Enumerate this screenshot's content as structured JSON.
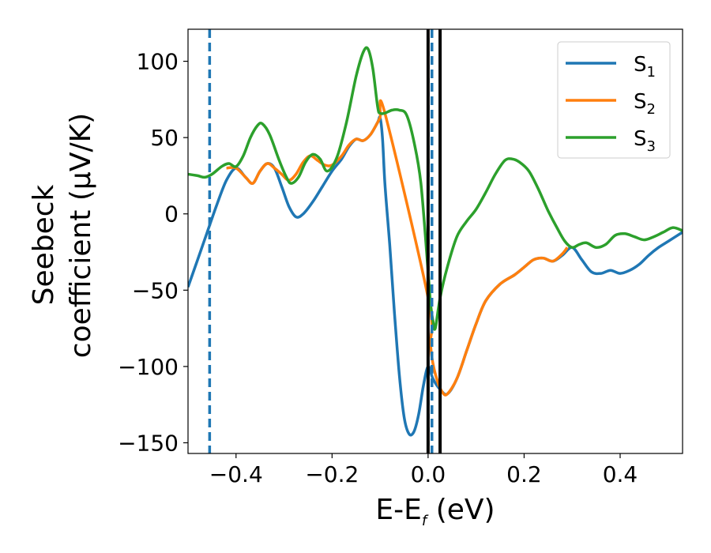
{
  "chart_data": {
    "type": "line",
    "xlabel": {
      "main": "E-E",
      "sub": "f",
      "unit": " (eV)"
    },
    "ylabel": {
      "line1": "Seebeck",
      "line2": "coefficient  (μV/K)"
    },
    "xlim": [
      -0.5,
      0.53
    ],
    "ylim": [
      -157,
      121
    ],
    "xticks": [
      -0.4,
      -0.2,
      0.0,
      0.2,
      0.4
    ],
    "xtick_labels": [
      "−0.4",
      "−0.2",
      "0.0",
      "0.2",
      "0.4"
    ],
    "yticks": [
      -150,
      -100,
      -50,
      0,
      50,
      100
    ],
    "ytick_labels": [
      "−150",
      "−100",
      "−50",
      "0",
      "50",
      "100"
    ],
    "grid": false,
    "legend_position": "top-right",
    "vlines": [
      {
        "x": -0.455,
        "style": "dashed",
        "color": "#1f77b4"
      },
      {
        "x": 0.0,
        "style": "solid",
        "color": "#000000"
      },
      {
        "x": 0.008,
        "style": "dashed",
        "color": "#1f77b4"
      },
      {
        "x": 0.025,
        "style": "solid",
        "color": "#000000"
      }
    ],
    "series": [
      {
        "name": "S",
        "sub": "1",
        "color": "#1f77b4",
        "points": [
          [
            -0.5,
            -48
          ],
          [
            -0.48,
            -30
          ],
          [
            -0.46,
            -12
          ],
          [
            -0.44,
            6
          ],
          [
            -0.42,
            22
          ],
          [
            -0.4,
            30
          ],
          [
            -0.38,
            24
          ],
          [
            -0.365,
            20
          ],
          [
            -0.35,
            28
          ],
          [
            -0.335,
            33
          ],
          [
            -0.32,
            30
          ],
          [
            -0.305,
            18
          ],
          [
            -0.29,
            5
          ],
          [
            -0.275,
            -2
          ],
          [
            -0.26,
            0
          ],
          [
            -0.24,
            8
          ],
          [
            -0.22,
            18
          ],
          [
            -0.2,
            28
          ],
          [
            -0.18,
            36
          ],
          [
            -0.165,
            44
          ],
          [
            -0.15,
            49
          ],
          [
            -0.135,
            48
          ],
          [
            -0.12,
            52
          ],
          [
            -0.105,
            60
          ],
          [
            -0.1,
            63
          ],
          [
            -0.095,
            50
          ],
          [
            -0.09,
            20
          ],
          [
            -0.08,
            -20
          ],
          [
            -0.07,
            -65
          ],
          [
            -0.06,
            -105
          ],
          [
            -0.05,
            -133
          ],
          [
            -0.04,
            -144
          ],
          [
            -0.03,
            -143
          ],
          [
            -0.02,
            -132
          ],
          [
            -0.01,
            -113
          ],
          [
            0.0,
            -100
          ],
          [
            0.01,
            -108
          ],
          [
            0.025,
            -115
          ],
          [
            0.04,
            -118
          ],
          [
            0.06,
            -108
          ],
          [
            0.08,
            -90
          ],
          [
            0.1,
            -72
          ],
          [
            0.12,
            -57
          ],
          [
            0.15,
            -46
          ],
          [
            0.18,
            -40
          ],
          [
            0.2,
            -35
          ],
          [
            0.22,
            -30
          ],
          [
            0.24,
            -29
          ],
          [
            0.26,
            -31
          ],
          [
            0.28,
            -27
          ],
          [
            0.3,
            -22
          ],
          [
            0.32,
            -30
          ],
          [
            0.34,
            -38
          ],
          [
            0.36,
            -39
          ],
          [
            0.38,
            -37
          ],
          [
            0.4,
            -39
          ],
          [
            0.42,
            -37
          ],
          [
            0.44,
            -33
          ],
          [
            0.46,
            -27
          ],
          [
            0.48,
            -22
          ],
          [
            0.5,
            -18
          ],
          [
            0.53,
            -12
          ]
        ]
      },
      {
        "name": "S",
        "sub": "2",
        "color": "#ff7f0e",
        "points": [
          [
            -0.42,
            30
          ],
          [
            -0.4,
            30
          ],
          [
            -0.38,
            24
          ],
          [
            -0.365,
            20
          ],
          [
            -0.35,
            28
          ],
          [
            -0.335,
            33
          ],
          [
            -0.32,
            30
          ],
          [
            -0.305,
            26
          ],
          [
            -0.29,
            22
          ],
          [
            -0.275,
            26
          ],
          [
            -0.26,
            34
          ],
          [
            -0.245,
            38
          ],
          [
            -0.23,
            35
          ],
          [
            -0.215,
            32
          ],
          [
            -0.2,
            32
          ],
          [
            -0.18,
            38
          ],
          [
            -0.165,
            45
          ],
          [
            -0.15,
            49
          ],
          [
            -0.135,
            48
          ],
          [
            -0.12,
            52
          ],
          [
            -0.105,
            60
          ],
          [
            -0.1,
            63
          ],
          [
            -0.09,
            66
          ],
          [
            0.0,
            -55
          ],
          [
            0.005,
            -85
          ],
          [
            0.01,
            -98
          ],
          [
            0.02,
            -110
          ],
          [
            0.03,
            -117
          ],
          [
            0.04,
            -118
          ],
          [
            0.06,
            -108
          ],
          [
            0.08,
            -90
          ],
          [
            0.1,
            -72
          ],
          [
            0.12,
            -57
          ],
          [
            0.15,
            -46
          ],
          [
            0.18,
            -40
          ],
          [
            0.2,
            -35
          ],
          [
            0.22,
            -30
          ],
          [
            0.24,
            -29
          ],
          [
            0.26,
            -31
          ],
          [
            0.28,
            -26
          ],
          [
            0.29,
            -22
          ]
        ]
      },
      {
        "name": "S",
        "sub": "3",
        "color": "#2ca02c",
        "points": [
          [
            -0.5,
            26
          ],
          [
            -0.48,
            25
          ],
          [
            -0.465,
            24
          ],
          [
            -0.45,
            26
          ],
          [
            -0.43,
            31
          ],
          [
            -0.415,
            33
          ],
          [
            -0.4,
            31
          ],
          [
            -0.385,
            38
          ],
          [
            -0.37,
            50
          ],
          [
            -0.355,
            58
          ],
          [
            -0.345,
            59
          ],
          [
            -0.33,
            52
          ],
          [
            -0.31,
            35
          ],
          [
            -0.295,
            24
          ],
          [
            -0.285,
            20
          ],
          [
            -0.27,
            24
          ],
          [
            -0.255,
            34
          ],
          [
            -0.24,
            39
          ],
          [
            -0.225,
            36
          ],
          [
            -0.21,
            28
          ],
          [
            -0.19,
            37
          ],
          [
            -0.17,
            60
          ],
          [
            -0.15,
            90
          ],
          [
            -0.135,
            106
          ],
          [
            -0.125,
            108
          ],
          [
            -0.115,
            95
          ],
          [
            -0.105,
            70
          ],
          [
            -0.1,
            66
          ],
          [
            -0.09,
            66
          ],
          [
            -0.075,
            68
          ],
          [
            -0.06,
            68
          ],
          [
            -0.045,
            65
          ],
          [
            -0.03,
            48
          ],
          [
            -0.015,
            20
          ],
          [
            0.0,
            -38
          ],
          [
            0.005,
            -58
          ],
          [
            0.01,
            -70
          ],
          [
            0.015,
            -75
          ],
          [
            0.025,
            -55
          ],
          [
            0.04,
            -35
          ],
          [
            0.06,
            -15
          ],
          [
            0.08,
            -5
          ],
          [
            0.1,
            3
          ],
          [
            0.12,
            14
          ],
          [
            0.14,
            26
          ],
          [
            0.16,
            35
          ],
          [
            0.175,
            36
          ],
          [
            0.19,
            34
          ],
          [
            0.21,
            28
          ],
          [
            0.23,
            16
          ],
          [
            0.25,
            2
          ],
          [
            0.27,
            -10
          ],
          [
            0.285,
            -18
          ],
          [
            0.3,
            -22
          ],
          [
            0.315,
            -20
          ],
          [
            0.33,
            -19
          ],
          [
            0.35,
            -22
          ],
          [
            0.37,
            -20
          ],
          [
            0.39,
            -14
          ],
          [
            0.41,
            -13
          ],
          [
            0.43,
            -15
          ],
          [
            0.45,
            -17
          ],
          [
            0.47,
            -15
          ],
          [
            0.49,
            -12
          ],
          [
            0.51,
            -9
          ],
          [
            0.53,
            -11
          ]
        ]
      }
    ]
  }
}
